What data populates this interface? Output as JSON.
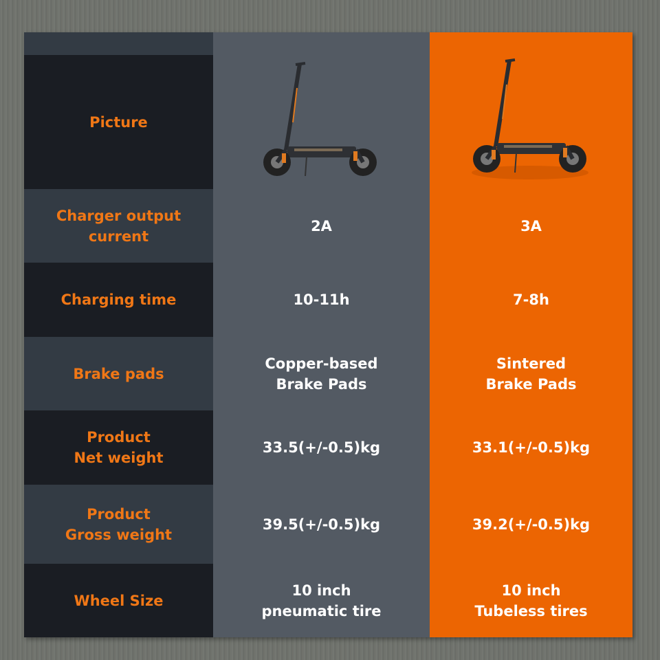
{
  "colors": {
    "accent": "#ec6502",
    "label_text": "#f07716",
    "dark_row": "#1a1d23",
    "light_row": "#333b44",
    "middle_column": "#535a63"
  },
  "rows": [
    {
      "label": "Picture",
      "left": "scooter-image",
      "right": "scooter-image"
    },
    {
      "label": "Charger output\ncurrent",
      "left": "2A",
      "right": "3A"
    },
    {
      "label": "Charging time",
      "left": "10-11h",
      "right": "7-8h"
    },
    {
      "label": "Brake pads",
      "left": "Copper-based\nBrake Pads",
      "right": "Sintered\nBrake Pads"
    },
    {
      "label": "Product\nNet weight",
      "left": "33.5(+/-0.5)kg",
      "right": "33.1(+/-0.5)kg"
    },
    {
      "label": "Product\nGross weight",
      "left": "39.5(+/-0.5)kg",
      "right": "39.2(+/-0.5)kg"
    },
    {
      "label": "Wheel Size",
      "left": "10 inch\npneumatic tire",
      "right": "10 inch\nTubeless tires"
    }
  ]
}
